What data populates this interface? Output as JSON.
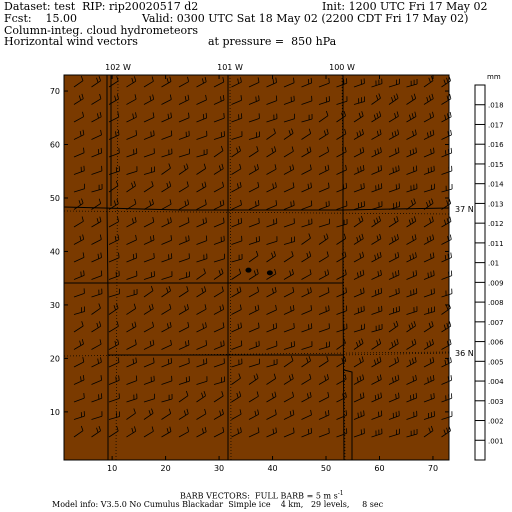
{
  "header": {
    "dataset": "Dataset: test  RIP: rip20020517 d2",
    "init": "Init: 1200 UTC Fri 17 May 02",
    "fcst": "Fcst:    15.00",
    "valid": "Valid: 0300 UTC Sat 18 May 02 (2200 CDT Fri 17 May 02)",
    "field1": "Column-integ. cloud hydrometeors",
    "field2": "Horizontal wind vectors",
    "pressure": "at pressure =  850 hPa"
  },
  "map": {
    "fill_color": "#7a3a00",
    "grid_x_range": [
      1,
      73
    ],
    "grid_y_range": [
      1,
      73
    ],
    "x_ticks": [
      "10",
      "20",
      "30",
      "40",
      "50",
      "60",
      "70"
    ],
    "y_ticks": [
      "10",
      "20",
      "30",
      "40",
      "50",
      "60",
      "70"
    ],
    "lon_labels": [
      "102 W",
      "101 W",
      "100 W"
    ],
    "lat_labels": [
      "37 N",
      "36 N"
    ],
    "dots": [
      {
        "x": 35.5,
        "y": 36.5
      },
      {
        "x": 39.5,
        "y": 36.0
      }
    ]
  },
  "colorbar": {
    "unit": "mm",
    "labels": [
      ".018",
      ".017",
      ".016",
      ".015",
      ".014",
      ".013",
      ".012",
      ".011",
      ".01",
      ".009",
      ".008",
      ".007",
      ".006",
      ".005",
      ".004",
      ".003",
      ".002",
      ".001"
    ]
  },
  "footer": {
    "barb_note": "BARB VECTORS:  FULL BARB = 5 m s",
    "barb_exp": "-1",
    "model_info": "Model info: V3.5.0 No Cumulus Blackadar  Simple ice    4 km,   29 levels,     8 sec"
  }
}
